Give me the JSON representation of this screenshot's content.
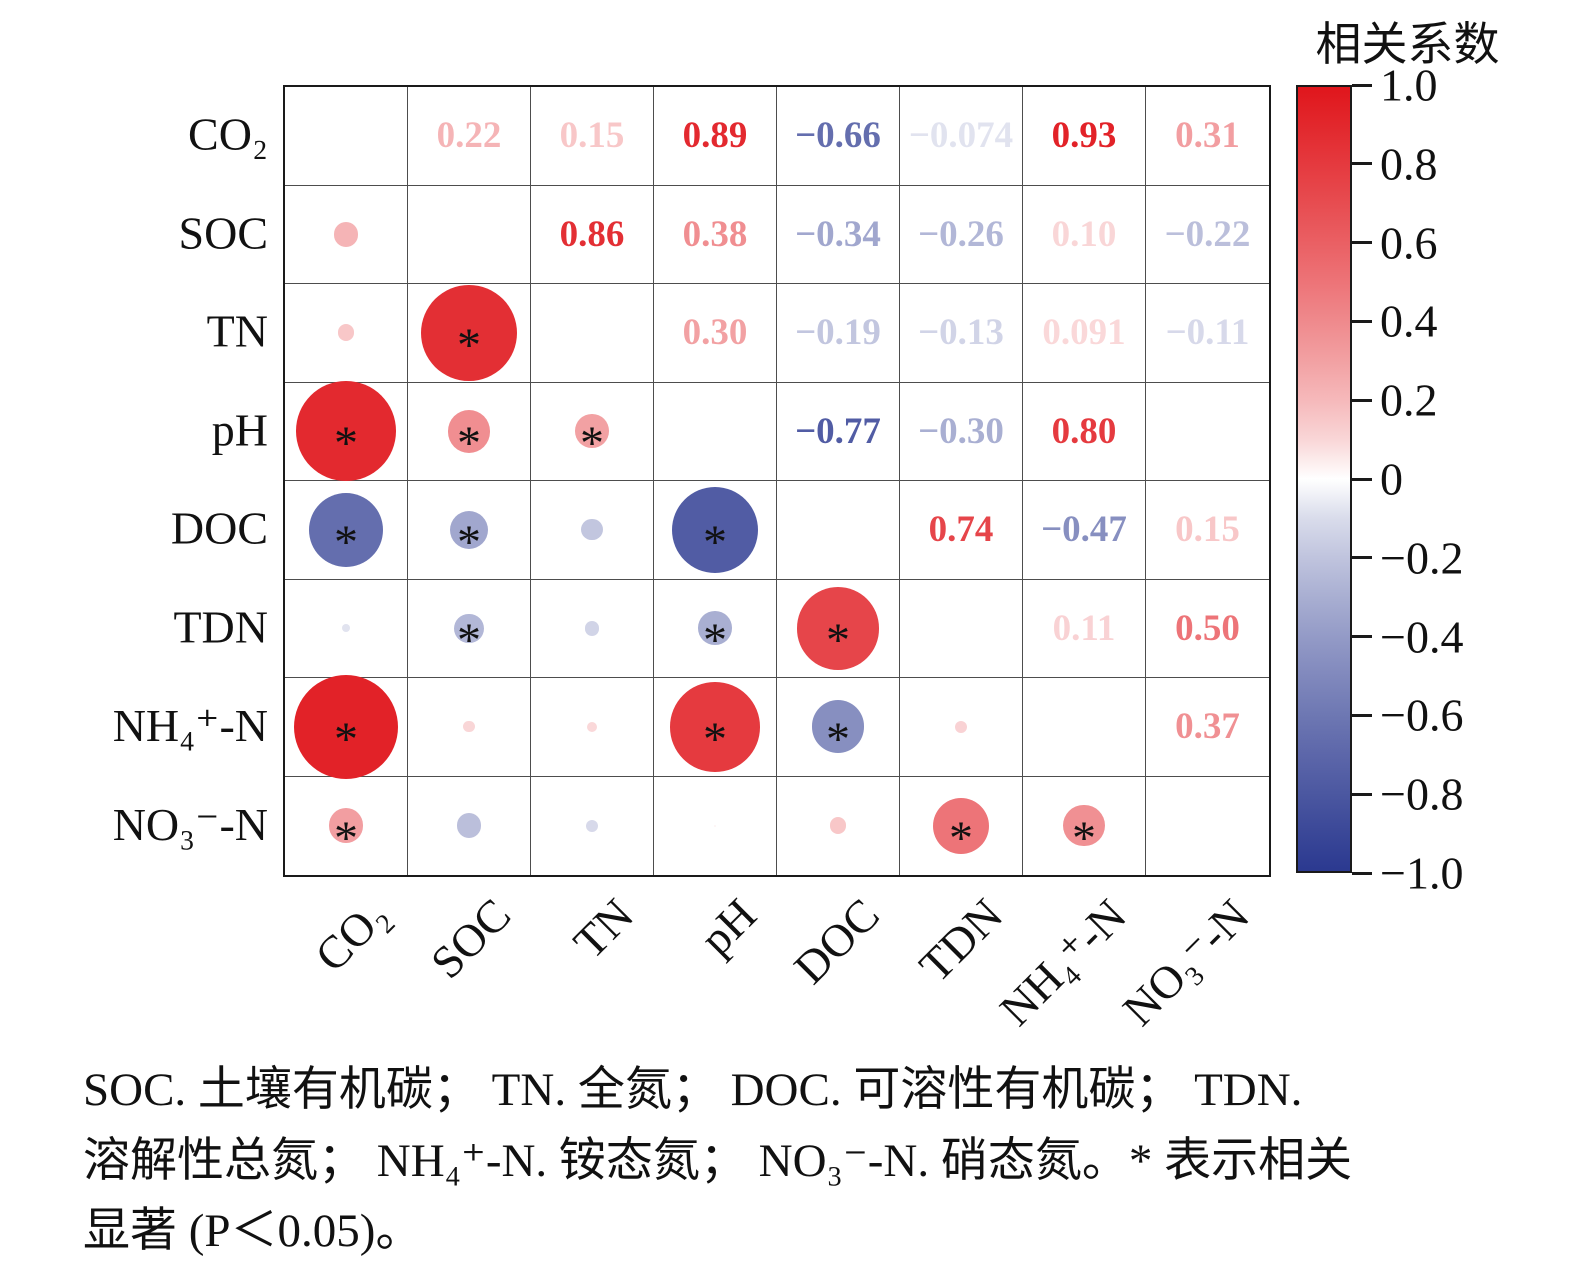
{
  "figure": {
    "colorbar": {
      "title": "相关系数",
      "min": -1,
      "max": 1,
      "ticks": [
        {
          "label": "1.0",
          "value": 1.0
        },
        {
          "label": "0.8",
          "value": 0.8
        },
        {
          "label": "0.6",
          "value": 0.6
        },
        {
          "label": "0.4",
          "value": 0.4
        },
        {
          "label": "0.2",
          "value": 0.2
        },
        {
          "label": "0",
          "value": 0
        },
        {
          "label": "−0.2",
          "value": -0.2
        },
        {
          "label": "−0.4",
          "value": -0.4
        },
        {
          "label": "−0.6",
          "value": -0.6
        },
        {
          "label": "−0.8",
          "value": -0.8
        },
        {
          "label": "−1.0",
          "value": -1.0
        }
      ]
    },
    "caption_lines": [
      "SOC. 土壤有机碳； TN. 全氮； DOC. 可溶性有机碳； TDN.",
      "溶解性总氮； NH₄⁺-N. 铵态氮； NO₃⁻-N. 硝态氮。* 表示相关",
      "显著 (P＜0.05)。"
    ]
  },
  "chart_data": {
    "type": "heatmap",
    "subtype": "correlation-matrix",
    "title": "相关系数",
    "layout": {
      "upper_triangle": "numbers",
      "lower_triangle": "circles",
      "diagonal": "blank",
      "legend_position": "right-colorbar",
      "grid": true
    },
    "colors": {
      "positive": "#e0161c",
      "negative": "#2b3990",
      "zero": "#ffffff"
    },
    "variables": [
      "CO₂",
      "SOC",
      "TN",
      "pH",
      "DOC",
      "TDN",
      "NH₄⁺-N",
      "NO₃⁻-N"
    ],
    "variable_keys": [
      "co2",
      "soc",
      "tn",
      "ph",
      "doc",
      "tdn",
      "nh4-n",
      "no3-n"
    ],
    "values": [
      [
        null,
        0.22,
        0.15,
        0.89,
        -0.66,
        -0.074,
        0.93,
        0.31
      ],
      [
        0.22,
        null,
        0.86,
        0.38,
        -0.34,
        -0.26,
        0.1,
        -0.22
      ],
      [
        0.15,
        0.86,
        null,
        0.3,
        -0.19,
        -0.13,
        0.091,
        -0.11
      ],
      [
        0.89,
        0.38,
        0.3,
        null,
        -0.77,
        -0.3,
        0.8,
        0.02
      ],
      [
        -0.66,
        -0.34,
        -0.19,
        -0.77,
        null,
        0.74,
        -0.47,
        0.15
      ],
      [
        -0.074,
        -0.26,
        -0.13,
        -0.3,
        0.74,
        null,
        0.11,
        0.5
      ],
      [
        0.93,
        0.1,
        0.091,
        0.8,
        -0.47,
        0.11,
        null,
        0.37
      ],
      [
        0.31,
        -0.22,
        -0.11,
        0.02,
        0.15,
        0.5,
        0.37,
        null
      ]
    ],
    "value_labels": [
      [
        "",
        "0.22",
        "0.15",
        "0.89",
        "−0.66",
        "−0.074",
        "0.93",
        "0.31"
      ],
      [
        "",
        "",
        "0.86",
        "0.38",
        "−0.34",
        "−0.26",
        "0.10",
        "−0.22"
      ],
      [
        "",
        "",
        "",
        "0.30",
        "−0.19",
        "−0.13",
        "0.091",
        "−0.11"
      ],
      [
        "",
        "",
        "",
        "",
        "−0.77",
        "−0.30",
        "0.80",
        ""
      ],
      [
        "",
        "",
        "",
        "",
        "",
        "0.74",
        "−0.47",
        "0.15"
      ],
      [
        "",
        "",
        "",
        "",
        "",
        "",
        "0.11",
        "0.50"
      ],
      [
        "",
        "",
        "",
        "",
        "",
        "",
        "",
        "0.37"
      ],
      [
        "",
        "",
        "",
        "",
        "",
        "",
        "",
        ""
      ]
    ],
    "significant_pairs": [
      [
        2,
        1
      ],
      [
        3,
        0
      ],
      [
        3,
        1
      ],
      [
        3,
        2
      ],
      [
        4,
        0
      ],
      [
        4,
        1
      ],
      [
        4,
        3
      ],
      [
        5,
        1
      ],
      [
        5,
        3
      ],
      [
        5,
        4
      ],
      [
        6,
        0
      ],
      [
        6,
        3
      ],
      [
        6,
        4
      ],
      [
        7,
        0
      ],
      [
        7,
        5
      ],
      [
        7,
        6
      ]
    ],
    "significance_note": "* 表示相关显著 (P＜0.05)"
  }
}
